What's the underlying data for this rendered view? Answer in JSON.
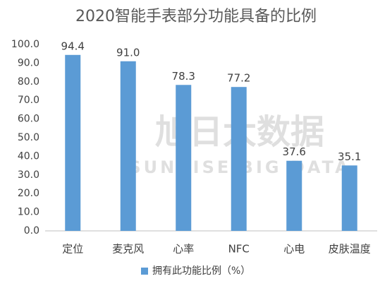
{
  "chart_data": {
    "type": "bar",
    "title": "2020智能手表部分功能具备的比例",
    "watermark": [
      "旭日大数据",
      "SUNRISE BIG DATA"
    ],
    "categories": [
      "定位",
      "麦克风",
      "心率",
      "NFC",
      "心电",
      "皮肤温度"
    ],
    "series": [
      {
        "name": "拥有此功能比例（%）",
        "color": "#5b9bd5",
        "values": [
          94.4,
          91.0,
          78.3,
          77.2,
          37.6,
          35.1
        ],
        "value_labels": [
          "94.4",
          "91.0",
          "78.3",
          "77.2",
          "37.6",
          "35.1"
        ]
      }
    ],
    "ylim": [
      0,
      100
    ],
    "yticks": [
      {
        "value": 0,
        "label": "0.0"
      },
      {
        "value": 10,
        "label": "10.0"
      },
      {
        "value": 20,
        "label": "20.0"
      },
      {
        "value": 30,
        "label": "30.0"
      },
      {
        "value": 40,
        "label": "40.0"
      },
      {
        "value": 50,
        "label": "50.0"
      },
      {
        "value": 60,
        "label": "60.0"
      },
      {
        "value": 70,
        "label": "70.0"
      },
      {
        "value": 80,
        "label": "80.0"
      },
      {
        "value": 90,
        "label": "90.0"
      },
      {
        "value": 100,
        "label": "100.0"
      }
    ],
    "grid": false,
    "legend": "bottom"
  }
}
